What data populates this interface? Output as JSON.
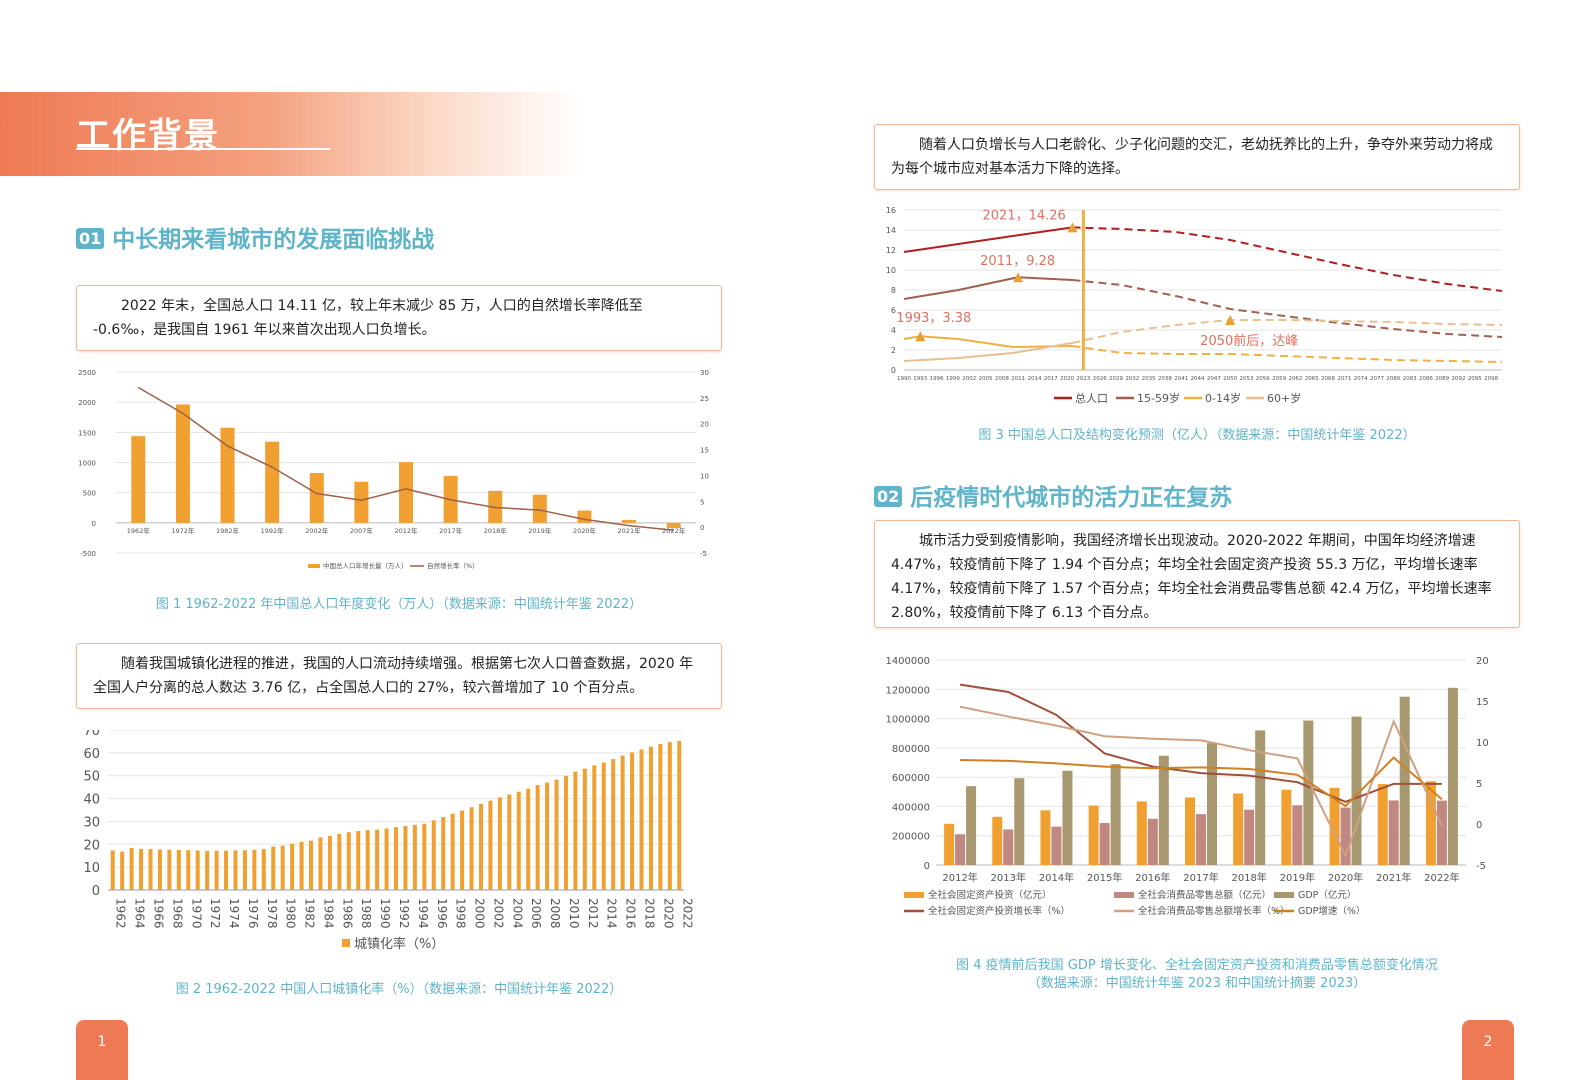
{
  "header": {
    "title": "工作背景"
  },
  "section1": {
    "num": "01",
    "title": "中长期来看城市的发展面临挑战"
  },
  "section2": {
    "num": "02",
    "title": "后疫情时代城市的活力正在复苏"
  },
  "text1": "2022 年末，全国总人口 14.11 亿，较上年末减少 85 万，人口的自然增长率降低至 -0.6‰，是我国自 1961 年以来首次出现人口负增长。",
  "text2": "随着我国城镇化进程的推进，我国的人口流动持续增强。根据第七次人口普查数据，2020 年全国人户分离的总人数达 3.76 亿，占全国总人口的 27%，较六普增加了 10 个百分点。",
  "text3": "随着人口负增长与人口老龄化、少子化问题的交汇，老幼抚养比的上升，争夺外来劳动力将成为每个城市应对基本活力下降的选择。",
  "text4": "城市活力受到疫情影响，我国经济增长出现波动。2020-2022 年期间，中国年均经济增速 4.47%，较疫情前下降了 1.94 个百分点；年均全社会固定资产投资 55.3 万亿，平均增长速率 4.17%，较疫情前下降了 1.57 个百分点；年均全社会消费品零售总额 42.4 万亿，平均增长速率 2.80%，较疫情前下降了 6.13 个百分点。",
  "captions": {
    "fig1": "图 1  1962-2022 年中国总人口年度变化（万人）（数据来源：中国统计年鉴 2022）",
    "fig2": "图 2  1962-2022 中国人口城镇化率（%）（数据来源：中国统计年鉴 2022）",
    "fig3": "图 3  中国总人口及结构变化预测（亿人）（数据来源：中国统计年鉴 2022）",
    "fig4a": "图 4  疫情前后我国 GDP 增长变化、全社会固定资产投资和消费品零售总额变化情况",
    "fig4b": "（数据来源：中国统计年鉴 2023 和中国统计摘要 2023）"
  },
  "pages": {
    "left": "1",
    "right": "2"
  },
  "colors": {
    "accent": "#ee7a55",
    "teal": "#5fb4c9",
    "bar_orange": "#f0a030",
    "line_brown": "#a0604a"
  },
  "chart_data": [
    {
      "id": "fig1",
      "type": "bar",
      "categories": [
        "1962年",
        "1972年",
        "1982年",
        "1992年",
        "2002年",
        "2007年",
        "2012年",
        "2017年",
        "2018年",
        "2019年",
        "2020年",
        "2021年",
        "2022年"
      ],
      "series": [
        {
          "name": "中国总人口年增长量（万人）",
          "values": [
            1436,
            1962,
            1576,
            1345,
            826,
            681,
            1006,
            779,
            530,
            467,
            204,
            48,
            -85
          ]
        },
        {
          "name": "自然增长率（%）",
          "axis": "right",
          "values": [
            27,
            22,
            15.7,
            11.6,
            6.5,
            5.2,
            7.4,
            5.3,
            3.8,
            3.3,
            1.5,
            0.3,
            -0.6
          ]
        }
      ],
      "ylim": [
        -500,
        2500
      ],
      "y2lim": [
        -5,
        30
      ],
      "yticks": [
        -500,
        0,
        500,
        1000,
        1500,
        2000,
        2500
      ],
      "y2ticks": [
        -5,
        0,
        5,
        10,
        15,
        20,
        25,
        30
      ],
      "legend": "bottom",
      "grid": true
    },
    {
      "id": "fig2",
      "type": "bar",
      "x": [
        1962,
        1963,
        1964,
        1965,
        1966,
        1967,
        1968,
        1969,
        1970,
        1971,
        1972,
        1973,
        1974,
        1975,
        1976,
        1977,
        1978,
        1979,
        1980,
        1981,
        1982,
        1983,
        1984,
        1985,
        1986,
        1987,
        1988,
        1989,
        1990,
        1991,
        1992,
        1993,
        1994,
        1995,
        1996,
        1997,
        1998,
        1999,
        2000,
        2001,
        2002,
        2003,
        2004,
        2005,
        2006,
        2007,
        2008,
        2009,
        2010,
        2011,
        2012,
        2013,
        2014,
        2015,
        2016,
        2017,
        2018,
        2019,
        2020,
        2021,
        2022
      ],
      "xticks": [
        "1962",
        "1964",
        "1966",
        "1968",
        "1970",
        "1972",
        "1974",
        "1976",
        "1978",
        "1980",
        "1982",
        "1984",
        "1986",
        "1988",
        "1990",
        "1992",
        "1994",
        "1996",
        "1998",
        "2000",
        "2002",
        "2004",
        "2006",
        "2008",
        "2010",
        "2012",
        "2014",
        "2016",
        "2018",
        "2020",
        "2022"
      ],
      "series": [
        {
          "name": "城镇化率（%）",
          "values": [
            17.3,
            16.8,
            18.4,
            18.0,
            17.9,
            17.7,
            17.6,
            17.5,
            17.4,
            17.3,
            17.1,
            17.2,
            17.2,
            17.3,
            17.4,
            17.6,
            17.9,
            19.0,
            19.4,
            20.2,
            21.1,
            21.6,
            23.0,
            23.7,
            24.5,
            25.3,
            25.8,
            26.2,
            26.4,
            26.9,
            27.5,
            28.0,
            28.5,
            29.0,
            30.5,
            31.9,
            33.4,
            34.8,
            36.2,
            37.7,
            39.1,
            40.5,
            41.8,
            43.0,
            44.3,
            45.9,
            47.0,
            48.3,
            49.9,
            51.8,
            53.1,
            54.5,
            55.8,
            57.3,
            58.8,
            60.2,
            61.5,
            62.7,
            63.9,
            64.7,
            65.2
          ]
        }
      ],
      "ylim": [
        0,
        70
      ],
      "yticks": [
        0,
        10,
        20,
        30,
        40,
        50,
        60,
        70
      ],
      "legend": "bottom",
      "grid": true
    },
    {
      "id": "fig3",
      "type": "line",
      "xticks": [
        "1990",
        "1993",
        "1996",
        "1999",
        "2002",
        "2005",
        "2008",
        "2011",
        "2014",
        "2017",
        "2020",
        "2023",
        "2026",
        "2029",
        "2032",
        "2035",
        "2038",
        "2041",
        "2044",
        "2047",
        "2050",
        "2053",
        "2056",
        "2059",
        "2062",
        "2065",
        "2068",
        "2071",
        "2074",
        "2077",
        "2080",
        "2083",
        "2086",
        "2089",
        "2092",
        "2095",
        "2098"
      ],
      "series": [
        {
          "name": "总人口",
          "x": [
            1990,
            2000,
            2010,
            2021,
            2030,
            2040,
            2050,
            2060,
            2070,
            2080,
            2090,
            2100
          ],
          "values": [
            11.8,
            12.6,
            13.4,
            14.26,
            14.1,
            13.8,
            13.0,
            11.8,
            10.6,
            9.5,
            8.6,
            7.9
          ]
        },
        {
          "name": "15-59岁",
          "x": [
            1990,
            2000,
            2011,
            2021,
            2030,
            2040,
            2050,
            2060,
            2070,
            2080,
            2090,
            2100
          ],
          "values": [
            7.1,
            8.0,
            9.28,
            9.0,
            8.5,
            7.4,
            6.1,
            5.4,
            4.7,
            4.1,
            3.6,
            3.3
          ]
        },
        {
          "name": "0-14岁",
          "x": [
            1990,
            1993,
            2000,
            2010,
            2021,
            2030,
            2040,
            2050,
            2060,
            2070,
            2080,
            2090,
            2100
          ],
          "values": [
            3.1,
            3.38,
            3.1,
            2.3,
            2.4,
            1.7,
            1.6,
            1.6,
            1.4,
            1.2,
            1.0,
            0.9,
            0.8
          ]
        },
        {
          "name": "60+岁",
          "x": [
            1990,
            2000,
            2010,
            2021,
            2030,
            2040,
            2050,
            2060,
            2070,
            2080,
            2090,
            2100
          ],
          "values": [
            0.9,
            1.2,
            1.7,
            2.7,
            3.8,
            4.5,
            5.0,
            5.0,
            4.9,
            4.8,
            4.6,
            4.5
          ]
        }
      ],
      "annotations": [
        "2021，14.26",
        "2011，9.28",
        "1993，3.38",
        "2050前后，达峰"
      ],
      "ylim": [
        0,
        16
      ],
      "yticks": [
        0,
        2,
        4,
        6,
        8,
        10,
        12,
        14,
        16
      ],
      "legend": "bottom",
      "grid": true
    },
    {
      "id": "fig4",
      "type": "bar",
      "categories": [
        "2012年",
        "2013年",
        "2014年",
        "2015年",
        "2016年",
        "2017年",
        "2018年",
        "2019年",
        "2020年",
        "2021年",
        "2022年"
      ],
      "series": [
        {
          "name": "全社会固定资产投资（亿元）",
          "values": [
            281684,
            329318,
            373637,
            405928,
            434364,
            461284,
            488499,
            513608,
            527270,
            552884,
            572138
          ]
        },
        {
          "name": "全社会消费品零售总额（亿元）",
          "values": [
            210307,
            242843,
            262394,
            286588,
            315806,
            347327,
            377783,
            408017,
            391981,
            440823,
            439733
          ]
        },
        {
          "name": "GDP（亿元）",
          "values": [
            538580,
            592963,
            643563,
            688858,
            746395,
            832036,
            919281,
            986515,
            1013567,
            1149237,
            1210207
          ]
        },
        {
          "name": "全社会固定资产投资增长率（%）",
          "axis": "right",
          "values": [
            17.0,
            16.1,
            13.3,
            8.6,
            7.0,
            6.2,
            5.9,
            5.1,
            2.7,
            4.9,
            4.9
          ]
        },
        {
          "name": "全社会消费品零售总额增长率（%）",
          "axis": "right",
          "values": [
            14.3,
            13.1,
            12.0,
            10.7,
            10.4,
            10.2,
            9.0,
            8.0,
            -3.9,
            12.5,
            -0.2
          ]
        },
        {
          "name": "GDP增速（%）",
          "axis": "right",
          "values": [
            7.8,
            7.7,
            7.4,
            7.0,
            6.8,
            6.9,
            6.7,
            6.0,
            2.2,
            8.1,
            3.0
          ]
        }
      ],
      "ylim": [
        0,
        1400000
      ],
      "y2lim": [
        -5,
        20
      ],
      "yticks": [
        0,
        200000,
        400000,
        600000,
        800000,
        1000000,
        1200000,
        1400000
      ],
      "y2ticks": [
        -5,
        0,
        5,
        10,
        15,
        20
      ],
      "legend": "bottom",
      "grid": true
    }
  ]
}
